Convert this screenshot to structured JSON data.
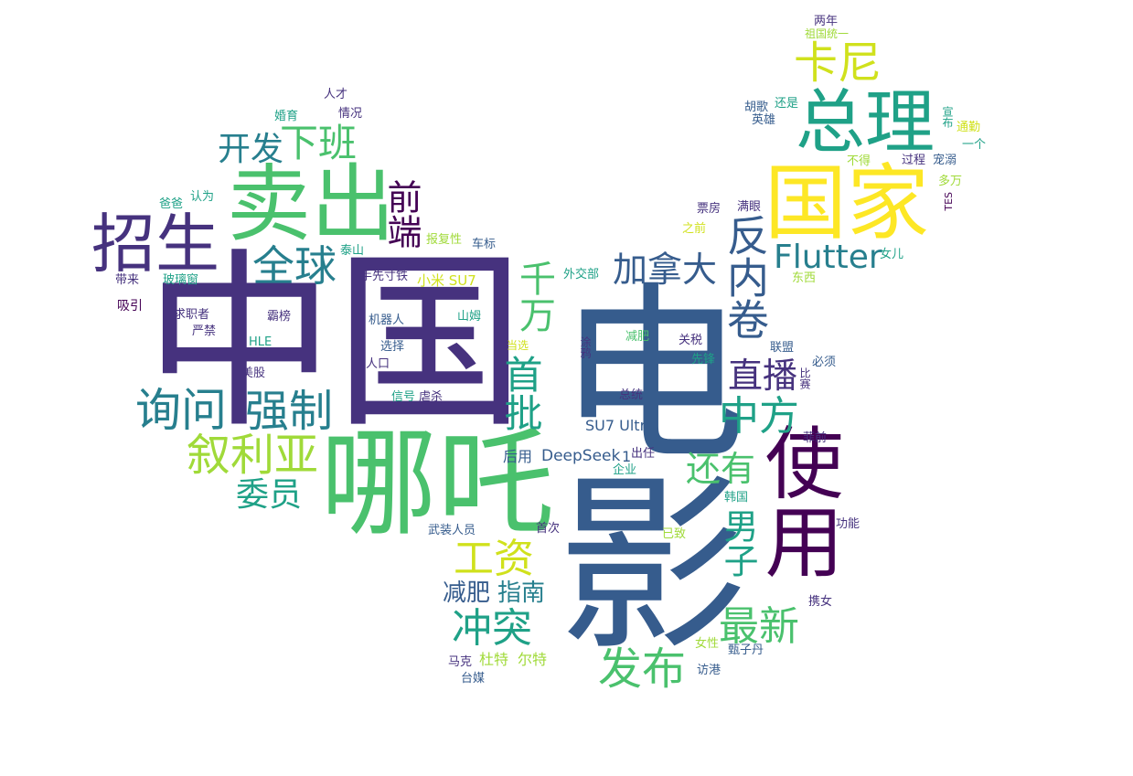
{
  "colors": {
    "dark_purple": "#46327e",
    "deep_purple": "#440154",
    "blue": "#365c8d",
    "teal_blue": "#277f8e",
    "teal": "#1fa187",
    "green": "#4ac16d",
    "light_green": "#a0da39",
    "yellow": "#fde725",
    "yellow_green": "#d0e11c"
  },
  "words": [
    {
      "id": "zhongguo",
      "text": "中国",
      "color": "dark_purple"
    },
    {
      "id": "dianying",
      "text": "电影",
      "color": "blue"
    },
    {
      "id": "nezha",
      "text": "哪吒",
      "color": "green"
    },
    {
      "id": "maichu",
      "text": "卖出",
      "color": "green"
    },
    {
      "id": "guojia",
      "text": "国家",
      "color": "yellow"
    },
    {
      "id": "zongli",
      "text": "总理",
      "color": "teal"
    },
    {
      "id": "zhaosheng",
      "text": "招生",
      "color": "dark_purple"
    },
    {
      "id": "shiyong",
      "text": "使用",
      "color": "deep_purple"
    },
    {
      "id": "kani",
      "text": "卡尼",
      "color": "yellow_green"
    },
    {
      "id": "fanneijuan",
      "text": "反内卷",
      "color": "blue"
    },
    {
      "id": "xunwen",
      "text": "询问",
      "color": "teal_blue"
    },
    {
      "id": "qiangzhi",
      "text": "强制",
      "color": "teal_blue"
    },
    {
      "id": "xuliya",
      "text": "叙利亚",
      "color": "light_green"
    },
    {
      "id": "quanqiu",
      "text": "全球",
      "color": "teal_blue"
    },
    {
      "id": "xiaban",
      "text": "下班",
      "color": "green"
    },
    {
      "id": "kaifa",
      "text": "开发",
      "color": "teal_blue"
    },
    {
      "id": "qianduan",
      "text": "前端",
      "color": "deep_purple"
    },
    {
      "id": "qianwan",
      "text": "千万",
      "color": "green"
    },
    {
      "id": "jianada",
      "text": "加拿大",
      "color": "blue"
    },
    {
      "id": "flutter",
      "text": "Flutter",
      "color": "teal_blue"
    },
    {
      "id": "zhibo",
      "text": "直播",
      "color": "dark_purple"
    },
    {
      "id": "zhongfang",
      "text": "中方",
      "color": "teal"
    },
    {
      "id": "shoupi",
      "text": "首批",
      "color": "teal"
    },
    {
      "id": "haiyou",
      "text": "还有",
      "color": "green"
    },
    {
      "id": "nanzi",
      "text": "男子",
      "color": "teal"
    },
    {
      "id": "zuixin",
      "text": "最新",
      "color": "green"
    },
    {
      "id": "weiyuan",
      "text": "委员",
      "color": "teal"
    },
    {
      "id": "gongzi",
      "text": "工资",
      "color": "yellow_green"
    },
    {
      "id": "chongtu",
      "text": "冲突",
      "color": "teal"
    },
    {
      "id": "fabu",
      "text": "发布",
      "color": "green"
    },
    {
      "id": "jianfei_big",
      "text": "减肥",
      "color": "blue"
    },
    {
      "id": "zhinan",
      "text": "指南",
      "color": "teal_blue"
    },
    {
      "id": "su7ultra",
      "text": "SU7 Ultra",
      "color": "blue"
    },
    {
      "id": "deepseek",
      "text": "DeepSeek",
      "color": "blue"
    },
    {
      "id": "houyong",
      "text": "后用",
      "color": "blue"
    },
    {
      "id": "n1",
      "text": "1",
      "color": "blue"
    },
    {
      "id": "chuzhi",
      "text": "出任",
      "color": "dark_purple"
    },
    {
      "id": "xiaomisu7",
      "text": "小米 SU7",
      "color": "yellow_green"
    },
    {
      "id": "shouguangtie",
      "text": "手先寸铁",
      "color": "dark_purple"
    },
    {
      "id": "taishan",
      "text": "泰山",
      "color": "teal"
    },
    {
      "id": "baofuxing",
      "text": "报复性",
      "color": "light_green"
    },
    {
      "id": "chebiao",
      "text": "车标",
      "color": "blue"
    },
    {
      "id": "waijiaobu",
      "text": "外交部",
      "color": "teal"
    },
    {
      "id": "jiqiren",
      "text": "机器人",
      "color": "blue"
    },
    {
      "id": "shanmu",
      "text": "山姆",
      "color": "teal"
    },
    {
      "id": "xuanze",
      "text": "选择",
      "color": "blue"
    },
    {
      "id": "renkou",
      "text": "人口",
      "color": "dark_purple"
    },
    {
      "id": "dangxuan",
      "text": "当选",
      "color": "yellow_green"
    },
    {
      "id": "xinhao",
      "text": "信号",
      "color": "teal"
    },
    {
      "id": "nuesha",
      "text": "虐杀",
      "color": "dark_purple"
    },
    {
      "id": "qiuzhizhe",
      "text": "求职者",
      "color": "dark_purple"
    },
    {
      "id": "bababang",
      "text": "霸榜",
      "color": "dark_purple"
    },
    {
      "id": "yanjin",
      "text": "严禁",
      "color": "dark_purple"
    },
    {
      "id": "hle",
      "text": "HLE",
      "color": "teal"
    },
    {
      "id": "meigu",
      "text": "美股",
      "color": "dark_purple"
    },
    {
      "id": "daiilai",
      "text": "带来",
      "color": "dark_purple"
    },
    {
      "id": "bolichuang",
      "text": "玻璃窗",
      "color": "teal"
    },
    {
      "id": "xiyin",
      "text": "吸引",
      "color": "deep_purple"
    },
    {
      "id": "baba",
      "text": "爸爸",
      "color": "teal"
    },
    {
      "id": "renwei",
      "text": "认为",
      "color": "teal"
    },
    {
      "id": "hunyu",
      "text": "婚育",
      "color": "teal"
    },
    {
      "id": "qingkuang",
      "text": "情况",
      "color": "dark_purple"
    },
    {
      "id": "rencai",
      "text": "人才",
      "color": "dark_purple"
    },
    {
      "id": "liangnian",
      "text": "两年",
      "color": "dark_purple"
    },
    {
      "id": "zuguotongyi",
      "text": "祖国统一",
      "color": "light_green"
    },
    {
      "id": "huge",
      "text": "胡歌",
      "color": "blue"
    },
    {
      "id": "haishi",
      "text": "还是",
      "color": "teal"
    },
    {
      "id": "yingxiong",
      "text": "英雄",
      "color": "blue"
    },
    {
      "id": "xuanbu",
      "text": "宣布",
      "color": "teal"
    },
    {
      "id": "tonggou",
      "text": "通勤",
      "color": "yellow_green"
    },
    {
      "id": "yige",
      "text": "一个",
      "color": "teal"
    },
    {
      "id": "bude",
      "text": "不得",
      "color": "light_green"
    },
    {
      "id": "guocheng",
      "text": "过程",
      "color": "dark_purple"
    },
    {
      "id": "chongni",
      "text": "宠溺",
      "color": "blue"
    },
    {
      "id": "duowan",
      "text": "多万",
      "color": "light_green"
    },
    {
      "id": "tes",
      "text": "TES",
      "color": "deep_purple"
    },
    {
      "id": "piaofang",
      "text": "票房",
      "color": "dark_purple"
    },
    {
      "id": "manyan",
      "text": "满眼",
      "color": "dark_purple"
    },
    {
      "id": "zhiqian",
      "text": "之前",
      "color": "yellow_green"
    },
    {
      "id": "nuer",
      "text": "女儿",
      "color": "teal"
    },
    {
      "id": "dongxi",
      "text": "东西",
      "color": "light_green"
    },
    {
      "id": "jianfei_small",
      "text": "减肥",
      "color": "green"
    },
    {
      "id": "guanshui",
      "text": "关税",
      "color": "dark_purple"
    },
    {
      "id": "lianmeng",
      "text": "联盟",
      "color": "blue"
    },
    {
      "id": "xianfeng",
      "text": "先锋",
      "color": "teal"
    },
    {
      "id": "bixu",
      "text": "必须",
      "color": "blue"
    },
    {
      "id": "bisai",
      "text": "比赛",
      "color": "dark_purple"
    },
    {
      "id": "zongtong",
      "text": "总统",
      "color": "dark_purple"
    },
    {
      "id": "chongliu",
      "text": "涂鸦",
      "color": "dark_purple"
    },
    {
      "id": "feiqian",
      "text": "菲前",
      "color": "dark_purple"
    },
    {
      "id": "qiye",
      "text": "企业",
      "color": "teal"
    },
    {
      "id": "hanguo",
      "text": "韩国",
      "color": "teal"
    },
    {
      "id": "gongneng",
      "text": "功能",
      "color": "dark_purple"
    },
    {
      "id": "yizhi",
      "text": "已致",
      "color": "light_green"
    },
    {
      "id": "shouci",
      "text": "首次",
      "color": "dark_purple"
    },
    {
      "id": "wuzhuangrenyuan",
      "text": "武装人员",
      "color": "blue"
    },
    {
      "id": "xienv",
      "text": "携女",
      "color": "dark_purple"
    },
    {
      "id": "nvxing",
      "text": "女性",
      "color": "light_green"
    },
    {
      "id": "zhenzidan",
      "text": "甄子丹",
      "color": "blue"
    },
    {
      "id": "fanggang",
      "text": "访港",
      "color": "blue"
    },
    {
      "id": "make",
      "text": "马克",
      "color": "dark_purple"
    },
    {
      "id": "dute",
      "text": "杜特",
      "color": "light_green"
    },
    {
      "id": "erte",
      "text": "尔特",
      "color": "light_green"
    },
    {
      "id": "taimei",
      "text": "台媒",
      "color": "blue"
    }
  ]
}
